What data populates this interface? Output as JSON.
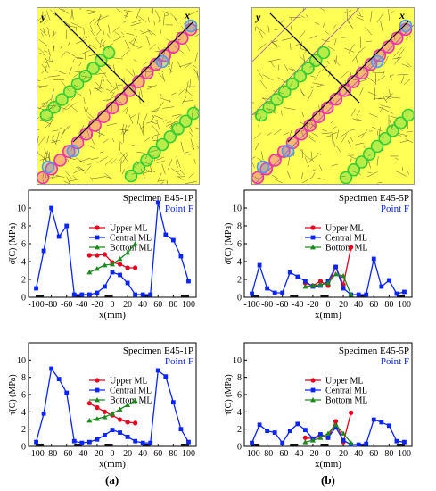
{
  "photos": [
    {
      "axis_x": "x",
      "axis_y": "y"
    },
    {
      "axis_x": "x",
      "axis_y": "y"
    }
  ],
  "captions": [
    "(a)",
    "(b)"
  ],
  "colors": {
    "upper": "#e8001c",
    "central": "#0a24ff",
    "bottom": "#1a8a1a",
    "crack_bg": "#ffff55",
    "ring_pink": "#ee33aa",
    "ring_green": "#33cc33",
    "ring_blue": "#5599ee"
  },
  "chart_data": [
    {
      "type": "line",
      "title": "Specimen E45-1P",
      "subtitle": "Point F",
      "ylabel": "σ̄(C) (MPa)",
      "xlabel": "x(mm)",
      "ylim": [
        0,
        12
      ],
      "yticks": [
        0,
        2,
        4,
        6,
        8,
        10
      ],
      "xticks": [
        -100,
        -80,
        -60,
        -40,
        -20,
        0,
        20,
        40,
        60,
        80,
        100
      ],
      "legend": "top-center",
      "series": [
        {
          "name": "Upper ML",
          "color": "#e8001c",
          "marker": "circle",
          "x": [
            -30,
            -20,
            -10,
            0,
            10,
            20,
            30
          ],
          "values": [
            4.7,
            4.7,
            4.8,
            3.9,
            3.7,
            3.3,
            3.3
          ]
        },
        {
          "name": "Central ML",
          "color": "#0a24ff",
          "marker": "square",
          "x": [
            -100,
            -90,
            -80,
            -70,
            -60,
            -50,
            -40,
            -30,
            -20,
            -10,
            0,
            10,
            20,
            30,
            40,
            50,
            60,
            70,
            80,
            90,
            100
          ],
          "values": [
            1.0,
            5.2,
            10.0,
            6.8,
            8.0,
            0.3,
            0.3,
            0.3,
            0.5,
            1.2,
            2.8,
            2.5,
            1.6,
            0.3,
            0.3,
            0.3,
            10.6,
            7.0,
            6.4,
            4.6,
            1.8
          ]
        },
        {
          "name": "Bottom ML",
          "color": "#1a8a1a",
          "marker": "triangle",
          "x": [
            -30,
            -20,
            -10,
            0,
            10,
            20,
            30
          ],
          "values": [
            2.8,
            3.2,
            3.6,
            3.7,
            4.3,
            5.0,
            6.0
          ]
        }
      ]
    },
    {
      "type": "line",
      "title": "Specimen E45-5P",
      "subtitle": "Point F",
      "ylabel": "σ̄(C) (MPa)",
      "xlabel": "x(mm)",
      "ylim": [
        0,
        12
      ],
      "yticks": [
        0,
        2,
        4,
        6,
        8,
        10
      ],
      "xticks": [
        -100,
        -80,
        -60,
        -40,
        -20,
        0,
        20,
        40,
        60,
        80,
        100
      ],
      "legend": "top-center",
      "series": [
        {
          "name": "Upper ML",
          "color": "#e8001c",
          "marker": "circle",
          "x": [
            -30,
            -20,
            -10,
            0,
            10,
            20,
            30
          ],
          "values": [
            1.6,
            1.3,
            1.8,
            1.3,
            3.4,
            1.4,
            5.6
          ]
        },
        {
          "name": "Central ML",
          "color": "#0a24ff",
          "marker": "square",
          "x": [
            -100,
            -90,
            -80,
            -70,
            -60,
            -50,
            -40,
            -30,
            -20,
            -10,
            0,
            10,
            20,
            30,
            40,
            50,
            60,
            70,
            80,
            90,
            100
          ],
          "values": [
            0.4,
            3.6,
            1.0,
            0.5,
            0.5,
            2.8,
            2.3,
            1.8,
            1.2,
            1.3,
            1.8,
            3.4,
            1.0,
            0.3,
            0.3,
            0.3,
            4.3,
            1.2,
            1.9,
            0.4,
            0.6
          ]
        },
        {
          "name": "Bottom ML",
          "color": "#1a8a1a",
          "marker": "triangle",
          "x": [
            -30,
            -20,
            -10,
            0,
            10,
            20,
            30
          ],
          "values": [
            1.2,
            1.3,
            1.4,
            1.6,
            2.6,
            2.4,
            0.3
          ]
        }
      ]
    },
    {
      "type": "line",
      "title": "Specimen E45-1P",
      "subtitle": "Point F",
      "ylabel": "τ̄(C) (MPa)",
      "xlabel": "x(mm)",
      "ylim": [
        0,
        12
      ],
      "yticks": [
        0,
        2,
        4,
        6,
        8,
        10
      ],
      "xticks": [
        -100,
        -80,
        -60,
        -40,
        -20,
        0,
        20,
        40,
        60,
        80,
        100
      ],
      "legend": "top-center",
      "series": [
        {
          "name": "Upper ML",
          "color": "#e8001c",
          "marker": "circle",
          "x": [
            -30,
            -20,
            -10,
            0,
            10,
            20,
            30
          ],
          "values": [
            5.0,
            4.5,
            4.0,
            3.6,
            3.1,
            2.8,
            2.7
          ]
        },
        {
          "name": "Central ML",
          "color": "#0a24ff",
          "marker": "square",
          "x": [
            -100,
            -90,
            -80,
            -70,
            -60,
            -50,
            -40,
            -30,
            -20,
            -10,
            0,
            10,
            20,
            30,
            40,
            50,
            60,
            70,
            80,
            90,
            100
          ],
          "values": [
            0.5,
            3.8,
            9.0,
            7.8,
            6.2,
            0.6,
            0.4,
            0.5,
            0.8,
            1.3,
            1.9,
            1.6,
            1.1,
            0.6,
            0.4,
            0.4,
            8.8,
            8.1,
            5.1,
            2.0,
            0.5
          ]
        },
        {
          "name": "Bottom ML",
          "color": "#1a8a1a",
          "marker": "triangle",
          "x": [
            -30,
            -20,
            -10,
            0,
            10,
            20,
            30
          ],
          "values": [
            3.0,
            3.2,
            3.4,
            3.8,
            4.3,
            4.8,
            5.3
          ]
        }
      ]
    },
    {
      "type": "line",
      "title": "Specimen E45-5P",
      "subtitle": "Point F",
      "ylabel": "τ̄(C) (MPa)",
      "xlabel": "x(mm)",
      "ylim": [
        0,
        12
      ],
      "yticks": [
        0,
        2,
        4,
        6,
        8,
        10
      ],
      "xticks": [
        -100,
        -80,
        -60,
        -40,
        -20,
        0,
        20,
        40,
        60,
        80,
        100
      ],
      "legend": "top-center",
      "series": [
        {
          "name": "Upper ML",
          "color": "#e8001c",
          "marker": "circle",
          "x": [
            -30,
            -20,
            -10,
            0,
            10,
            20,
            30
          ],
          "values": [
            1.0,
            0.9,
            1.2,
            1.0,
            2.9,
            0.5,
            3.9
          ]
        },
        {
          "name": "Central ML",
          "color": "#0a24ff",
          "marker": "square",
          "x": [
            -100,
            -90,
            -80,
            -70,
            -60,
            -50,
            -40,
            -30,
            -20,
            -10,
            0,
            10,
            20,
            30,
            40,
            50,
            60,
            70,
            80,
            90,
            100
          ],
          "values": [
            0.4,
            2.5,
            1.8,
            1.6,
            0.4,
            1.8,
            2.6,
            1.9,
            0.9,
            1.4,
            1.0,
            2.2,
            0.7,
            0.2,
            0.2,
            0.3,
            3.1,
            2.8,
            2.4,
            0.6,
            0.5
          ]
        },
        {
          "name": "Bottom ML",
          "color": "#1a8a1a",
          "marker": "triangle",
          "x": [
            -30,
            -20,
            -10,
            0,
            10,
            20,
            30
          ],
          "values": [
            0.5,
            0.7,
            1.0,
            1.5,
            2.5,
            1.5,
            0.4
          ]
        }
      ]
    }
  ]
}
